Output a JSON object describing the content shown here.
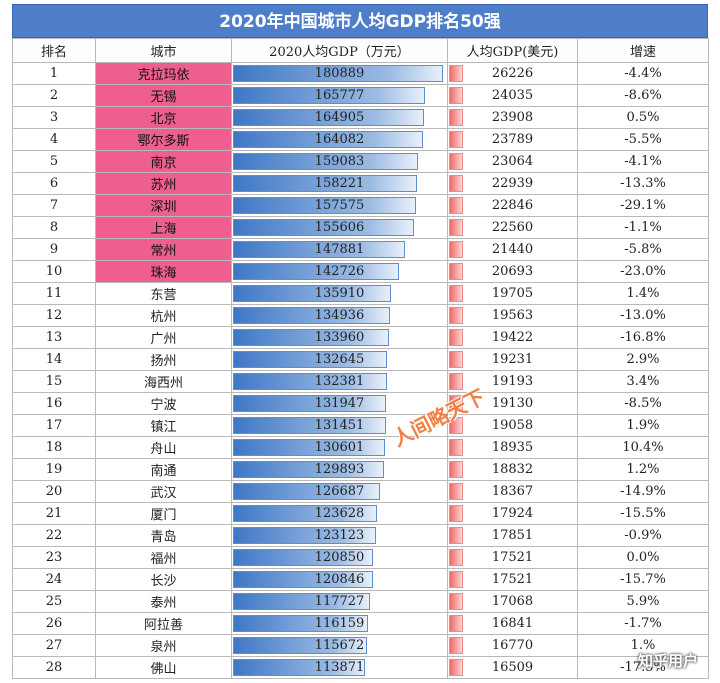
{
  "title": "2020年中国城市人均GDP排名50强",
  "headers": [
    "排名",
    "城市",
    "2020人均GDP（万元）",
    "人均GDP(美元)",
    "增速"
  ],
  "bar_max_cny": 180889,
  "highlight_color": "#ee5e91",
  "bar_color": "#3f77c6",
  "usd_bar_color": "#f06b6b",
  "rows": [
    {
      "rank": "1",
      "city": "克拉玛依",
      "cny": "180889",
      "usd": "26226",
      "growth": "-4.4%",
      "highlight": true
    },
    {
      "rank": "2",
      "city": "无锡",
      "cny": "165777",
      "usd": "24035",
      "growth": "-8.6%",
      "highlight": true
    },
    {
      "rank": "3",
      "city": "北京",
      "cny": "164905",
      "usd": "23908",
      "growth": "0.5%",
      "highlight": true
    },
    {
      "rank": "4",
      "city": "鄂尔多斯",
      "cny": "164082",
      "usd": "23789",
      "growth": "-5.5%",
      "highlight": true
    },
    {
      "rank": "5",
      "city": "南京",
      "cny": "159083",
      "usd": "23064",
      "growth": "-4.1%",
      "highlight": true
    },
    {
      "rank": "6",
      "city": "苏州",
      "cny": "158221",
      "usd": "22939",
      "growth": "-13.3%",
      "highlight": true
    },
    {
      "rank": "7",
      "city": "深圳",
      "cny": "157575",
      "usd": "22846",
      "growth": "-29.1%",
      "highlight": true
    },
    {
      "rank": "8",
      "city": "上海",
      "cny": "155606",
      "usd": "22560",
      "growth": "-1.1%",
      "highlight": true
    },
    {
      "rank": "9",
      "city": "常州",
      "cny": "147881",
      "usd": "21440",
      "growth": "-5.8%",
      "highlight": true
    },
    {
      "rank": "10",
      "city": "珠海",
      "cny": "142726",
      "usd": "20693",
      "growth": "-23.0%",
      "highlight": true
    },
    {
      "rank": "11",
      "city": "东营",
      "cny": "135910",
      "usd": "19705",
      "growth": "1.4%",
      "highlight": false
    },
    {
      "rank": "12",
      "city": "杭州",
      "cny": "134936",
      "usd": "19563",
      "growth": "-13.0%",
      "highlight": false
    },
    {
      "rank": "13",
      "city": "广州",
      "cny": "133960",
      "usd": "19422",
      "growth": "-16.8%",
      "highlight": false
    },
    {
      "rank": "14",
      "city": "扬州",
      "cny": "132645",
      "usd": "19231",
      "growth": "2.9%",
      "highlight": false
    },
    {
      "rank": "15",
      "city": "海西州",
      "cny": "132381",
      "usd": "19193",
      "growth": "3.4%",
      "highlight": false
    },
    {
      "rank": "16",
      "city": "宁波",
      "cny": "131947",
      "usd": "19130",
      "growth": "-8.5%",
      "highlight": false
    },
    {
      "rank": "17",
      "city": "镇江",
      "cny": "131451",
      "usd": "19058",
      "growth": "1.9%",
      "highlight": false
    },
    {
      "rank": "18",
      "city": "舟山",
      "cny": "130601",
      "usd": "18935",
      "growth": "10.4%",
      "highlight": false
    },
    {
      "rank": "19",
      "city": "南通",
      "cny": "129893",
      "usd": "18832",
      "growth": "1.2%",
      "highlight": false
    },
    {
      "rank": "20",
      "city": "武汉",
      "cny": "126687",
      "usd": "18367",
      "growth": "-14.9%",
      "highlight": false
    },
    {
      "rank": "21",
      "city": "厦门",
      "cny": "123628",
      "usd": "17924",
      "growth": "-15.5%",
      "highlight": false
    },
    {
      "rank": "22",
      "city": "青岛",
      "cny": "123123",
      "usd": "17851",
      "growth": "-0.9%",
      "highlight": false
    },
    {
      "rank": "23",
      "city": "福州",
      "cny": "120850",
      "usd": "17521",
      "growth": "0.0%",
      "highlight": false
    },
    {
      "rank": "24",
      "city": "长沙",
      "cny": "120846",
      "usd": "17521",
      "growth": "-15.7%",
      "highlight": false
    },
    {
      "rank": "25",
      "city": "泰州",
      "cny": "117727",
      "usd": "17068",
      "growth": "5.9%",
      "highlight": false
    },
    {
      "rank": "26",
      "city": "阿拉善",
      "cny": "116159",
      "usd": "16841",
      "growth": "-1.7%",
      "highlight": false
    },
    {
      "rank": "27",
      "city": "泉州",
      "cny": "115672",
      "usd": "16770",
      "growth": "1.%",
      "highlight": false
    },
    {
      "rank": "28",
      "city": "佛山",
      "cny": "113871",
      "usd": "16509",
      "growth": "-17.5%",
      "highlight": false
    }
  ],
  "stamp_text": "人间略天下",
  "watermark_text": "知乎用户"
}
